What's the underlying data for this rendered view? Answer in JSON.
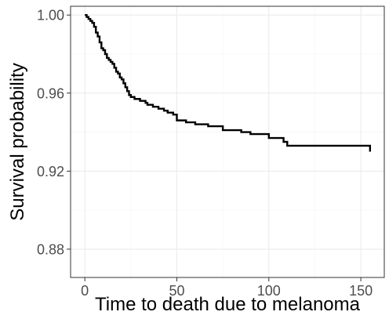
{
  "chart_data": {
    "type": "line",
    "step": true,
    "title": "",
    "xlabel": "Time to death due to melanoma",
    "ylabel": "Survival probability",
    "xlim": [
      -7.75,
      162.75
    ],
    "ylim": [
      0.8655,
      1.0045
    ],
    "x_ticks": [
      0,
      50,
      100,
      150
    ],
    "x_tick_labels": [
      "0",
      "50",
      "100",
      "150"
    ],
    "y_ticks": [
      0.88,
      0.92,
      0.96,
      1.0
    ],
    "y_tick_labels": [
      "0.88",
      "0.92",
      "0.96",
      "1.00"
    ],
    "grid": true,
    "legend": "none",
    "line_color": "#000000",
    "series": [
      {
        "x": [
          0,
          1,
          2,
          3,
          4,
          5,
          6,
          7,
          8,
          9,
          10,
          11,
          12,
          13,
          14,
          15,
          16,
          17,
          18,
          19,
          20,
          21,
          22,
          23,
          24,
          25,
          27,
          30,
          33,
          34,
          37,
          40,
          43,
          45,
          48,
          50,
          55,
          60,
          67,
          75,
          85,
          90,
          100,
          108,
          110,
          155
        ],
        "y": [
          1.0,
          0.999,
          0.998,
          0.997,
          0.996,
          0.994,
          0.991,
          0.989,
          0.986,
          0.983,
          0.982,
          0.98,
          0.978,
          0.977,
          0.976,
          0.975,
          0.973,
          0.971,
          0.97,
          0.968,
          0.967,
          0.965,
          0.963,
          0.961,
          0.959,
          0.958,
          0.957,
          0.956,
          0.955,
          0.954,
          0.953,
          0.952,
          0.951,
          0.95,
          0.949,
          0.946,
          0.945,
          0.944,
          0.943,
          0.941,
          0.94,
          0.939,
          0.937,
          0.935,
          0.933,
          0.93
        ]
      }
    ]
  }
}
